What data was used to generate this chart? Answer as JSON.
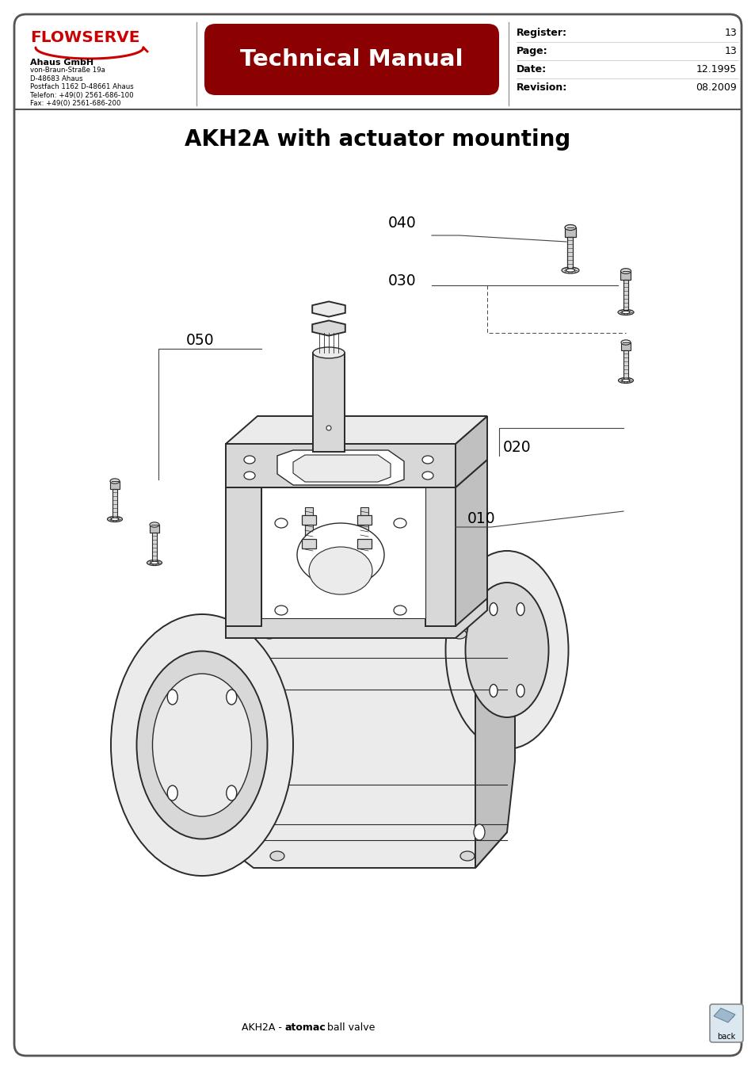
{
  "title": "AKH2A with actuator mounting",
  "tech_manual_text": "Technical Manual",
  "company_name": "Ahaus GmbH",
  "company_address_lines": [
    "von-Braun-Straße 19a",
    "D-48683 Ahaus",
    "Postfach 1162 D-48661 Ahaus",
    "Telefon: +49(0) 2561-686-100",
    "Fax: +49(0) 2561-686-200"
  ],
  "register_label": "Register:",
  "register_value": "13",
  "page_label": "Page:",
  "page_value": "13",
  "date_label": "Date:",
  "date_value": "12.1995",
  "revision_label": "Revision:",
  "revision_value": "08.2009",
  "footer_normal": "AKH2A - ",
  "footer_bold": "atomac",
  "footer_rest": " ball valve",
  "back_label": "back",
  "bg_color": "#ffffff",
  "header_red": "#8b0000",
  "line_color": "#2a2a2a",
  "fill_light": "#ebebeb",
  "fill_mid": "#d8d8d8",
  "fill_dark": "#c0c0c0",
  "fill_darker": "#a8a8a8"
}
